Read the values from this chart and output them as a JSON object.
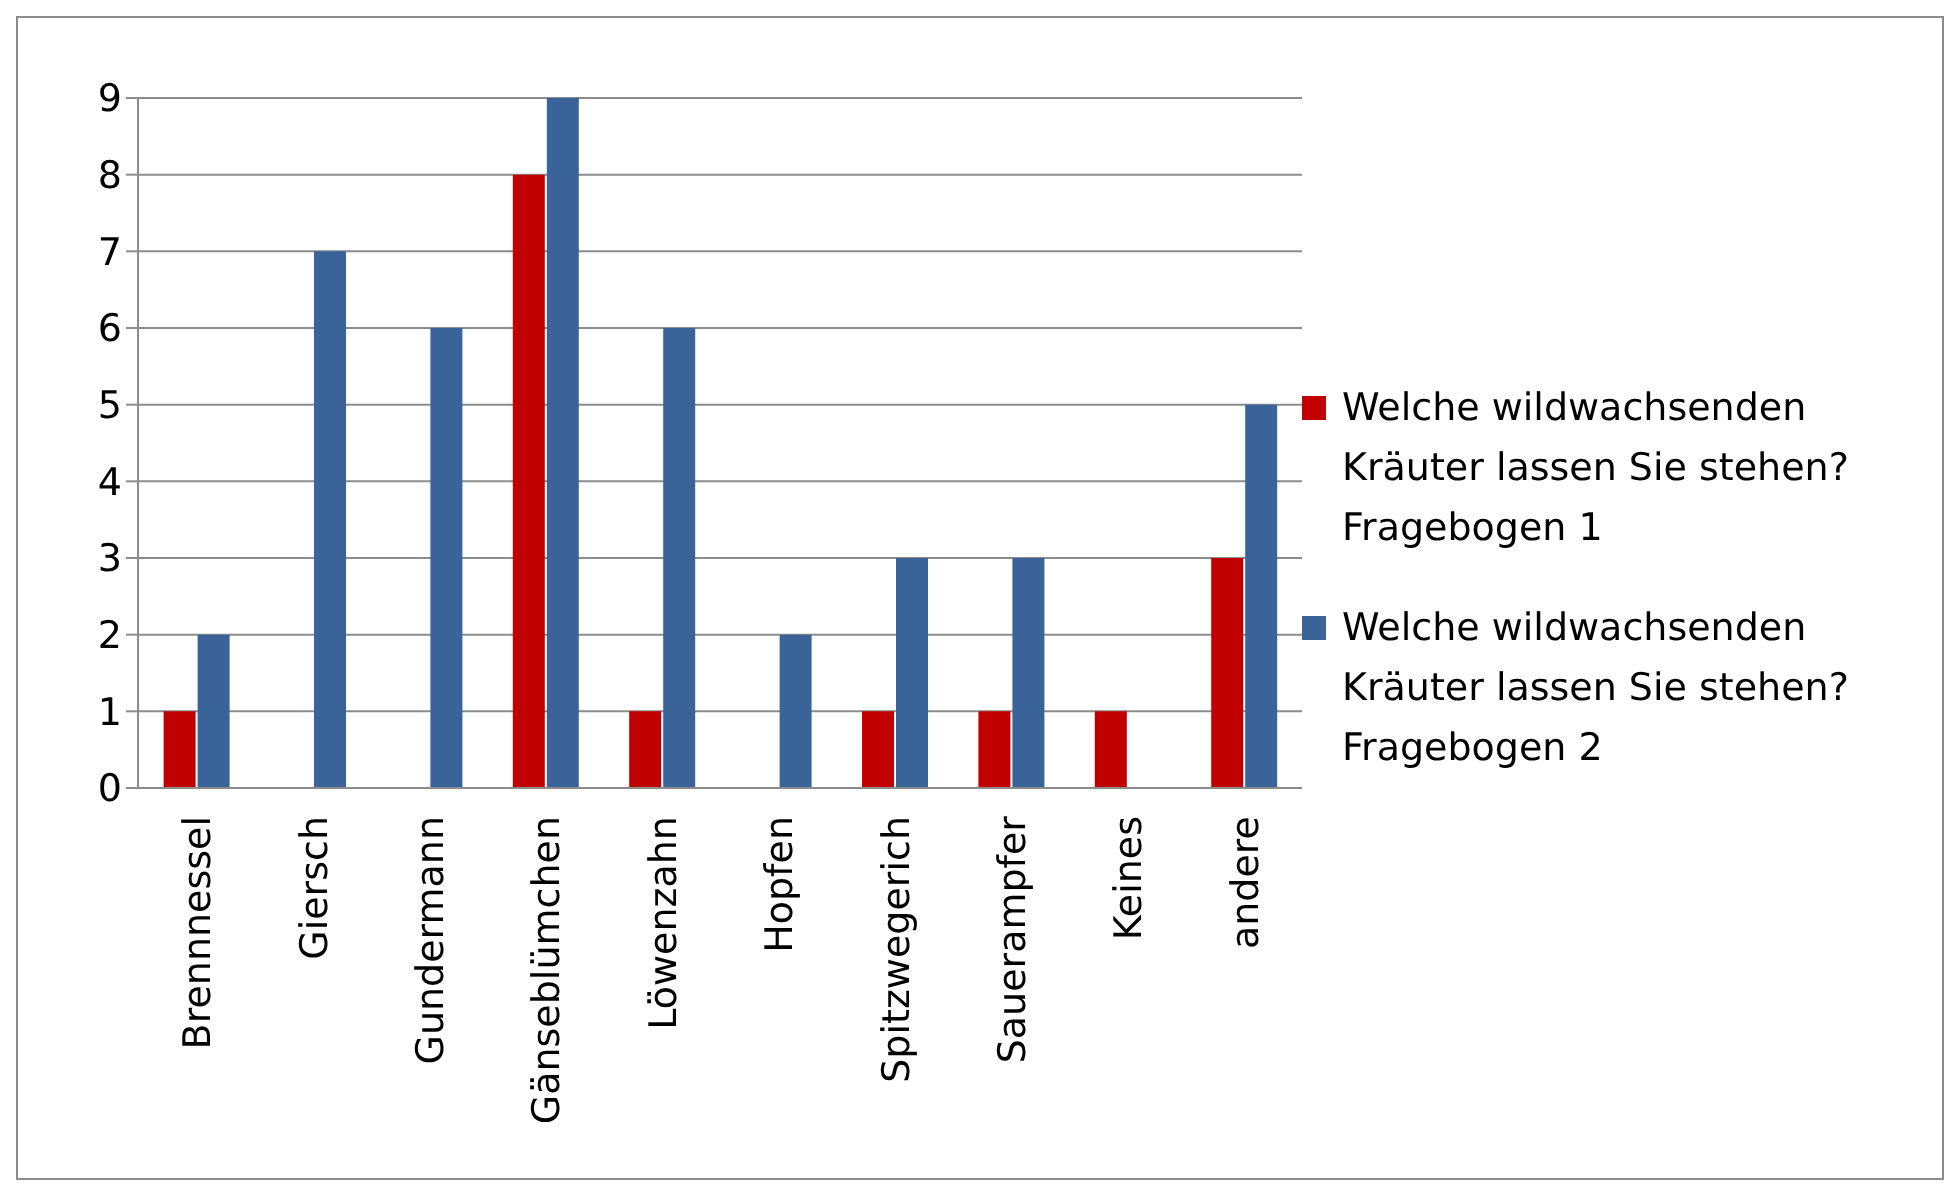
{
  "chart_data": {
    "type": "bar",
    "categories": [
      "Brennnessel",
      "Giersch",
      "Gundermann",
      "Gänseblümchen",
      "Löwenzahn",
      "Hopfen",
      "Spitzwegerich",
      "Sauerampfer",
      "Keines",
      "andere"
    ],
    "series": [
      {
        "name": "Welche wildwachsenden Kräuter lassen Sie stehen? Fragebogen 1",
        "color": "#c00000",
        "values": [
          1,
          0,
          0,
          8,
          1,
          0,
          1,
          1,
          1,
          3
        ]
      },
      {
        "name": "Welche wildwachsenden Kräuter lassen Sie stehen? Fragebogen 2",
        "color": "#3a6499",
        "values": [
          2,
          7,
          6,
          9,
          6,
          2,
          3,
          3,
          0,
          5
        ]
      }
    ],
    "ylim": [
      0,
      9
    ],
    "yticks": [
      0,
      1,
      2,
      3,
      4,
      5,
      6,
      7,
      8,
      9
    ],
    "grid": "y",
    "legend": "right"
  }
}
